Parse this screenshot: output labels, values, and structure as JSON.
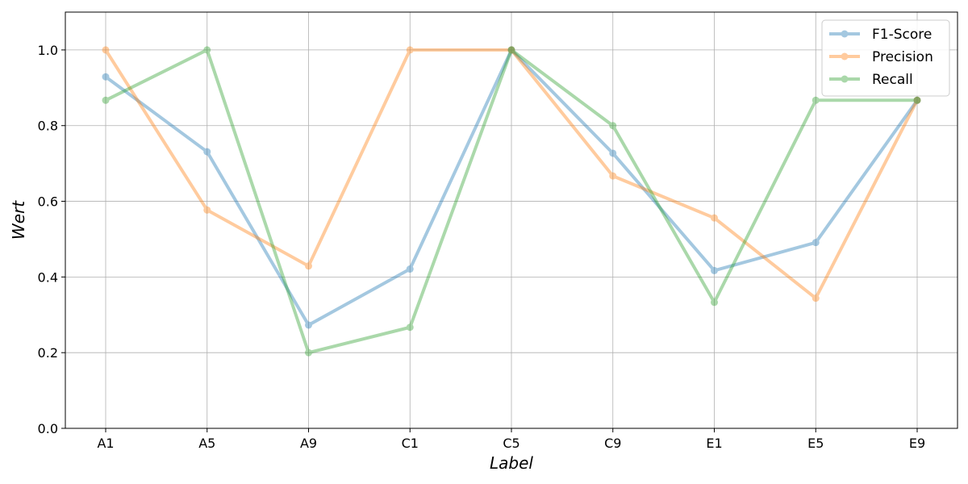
{
  "chart_data": {
    "type": "line",
    "title": "",
    "xlabel": "Label",
    "ylabel": "Wert",
    "categories": [
      "A1",
      "A5",
      "A9",
      "C1",
      "C5",
      "C9",
      "E1",
      "E5",
      "E9"
    ],
    "ylim": [
      0,
      1.1
    ],
    "yticks": [
      "0.0",
      "0.2",
      "0.4",
      "0.6",
      "0.8",
      "1.0"
    ],
    "grid": true,
    "legend_position": "top-right",
    "series": [
      {
        "name": "F1-Score",
        "color": "#1f77b4",
        "values": [
          0.929,
          0.731,
          0.273,
          0.421,
          1.0,
          0.727,
          0.417,
          0.491,
          0.867
        ]
      },
      {
        "name": "Precision",
        "color": "#ff7f0e",
        "values": [
          1.0,
          0.577,
          0.429,
          1.0,
          1.0,
          0.667,
          0.556,
          0.344,
          0.867
        ]
      },
      {
        "name": "Recall",
        "color": "#2ca02c",
        "values": [
          0.867,
          1.0,
          0.2,
          0.267,
          1.0,
          0.8,
          0.333,
          0.867,
          0.867
        ]
      }
    ]
  }
}
